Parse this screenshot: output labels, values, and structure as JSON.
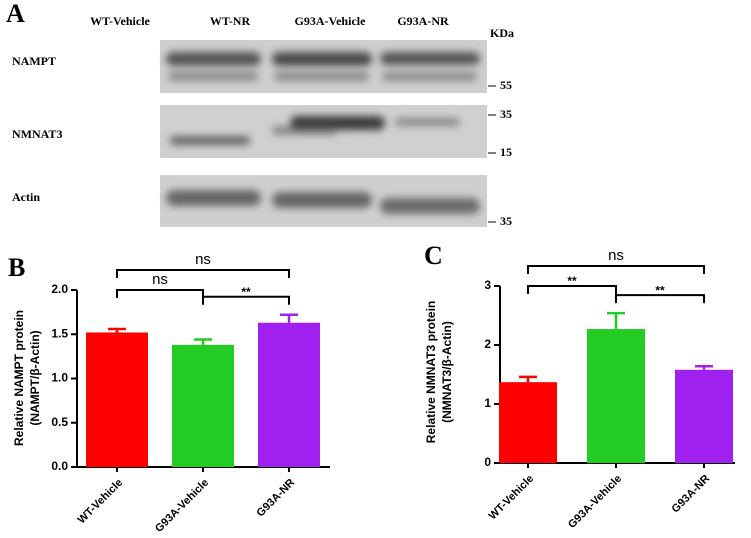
{
  "blot": {
    "label": "A",
    "lanes": [
      "WT-Vehicle",
      "WT-NR",
      "G93A-Vehicle",
      "G93A-NR"
    ],
    "unit": "KDa",
    "rows": [
      {
        "name": "NAMPT",
        "markers": [
          55
        ]
      },
      {
        "name": "NMNAT3",
        "markers": [
          35,
          15
        ]
      },
      {
        "name": "Actin",
        "markers": [
          35
        ]
      }
    ]
  },
  "chart_data": [
    {
      "type": "bar",
      "label": "B",
      "ylabel": [
        "Relative NAMPT protein",
        "(NAMPT/β-Actin)"
      ],
      "categories": [
        "WT-Vehicle",
        "G93A-Vehicle",
        "G93A-NR"
      ],
      "values": [
        1.52,
        1.38,
        1.63
      ],
      "errors": [
        0.04,
        0.06,
        0.09
      ],
      "colors": [
        "#ff0000",
        "#22cc22",
        "#a020f0"
      ],
      "ylim": [
        0,
        2.0
      ],
      "yticks": [
        {
          "value": 0,
          "label": "0.0"
        },
        0.5,
        {
          "value": 1,
          "label": "1.0"
        },
        1.5,
        {
          "value": 2,
          "label": "2.0"
        }
      ],
      "comparisons": [
        {
          "label": "ns",
          "groups": [
            "WT-Vehicle",
            "G93A-NR"
          ]
        },
        {
          "label": "ns",
          "groups": [
            "WT-Vehicle",
            "G93A-Vehicle"
          ]
        },
        {
          "label": "**",
          "groups": [
            "G93A-Vehicle",
            "G93A-NR"
          ]
        }
      ]
    },
    {
      "type": "bar",
      "label": "C",
      "ylabel": [
        "Relative NMNAT3 protein",
        "(NMNAT3/β-Actin)"
      ],
      "categories": [
        "WT-Vehicle",
        "G93A-Vehicle",
        "G93A-NR"
      ],
      "values": [
        1.37,
        2.27,
        1.58
      ],
      "errors": [
        0.09,
        0.27,
        0.06
      ],
      "colors": [
        "#ff0000",
        "#22cc22",
        "#a020f0"
      ],
      "ylim": [
        0,
        3
      ],
      "yticks": [
        0,
        1,
        2,
        3
      ],
      "comparisons": [
        {
          "label": "ns",
          "groups": [
            "WT-Vehicle",
            "G93A-NR"
          ]
        },
        {
          "label": "**",
          "groups": [
            "WT-Vehicle",
            "G93A-Vehicle"
          ]
        },
        {
          "label": "**",
          "groups": [
            "G93A-Vehicle",
            "G93A-NR"
          ]
        }
      ]
    }
  ]
}
